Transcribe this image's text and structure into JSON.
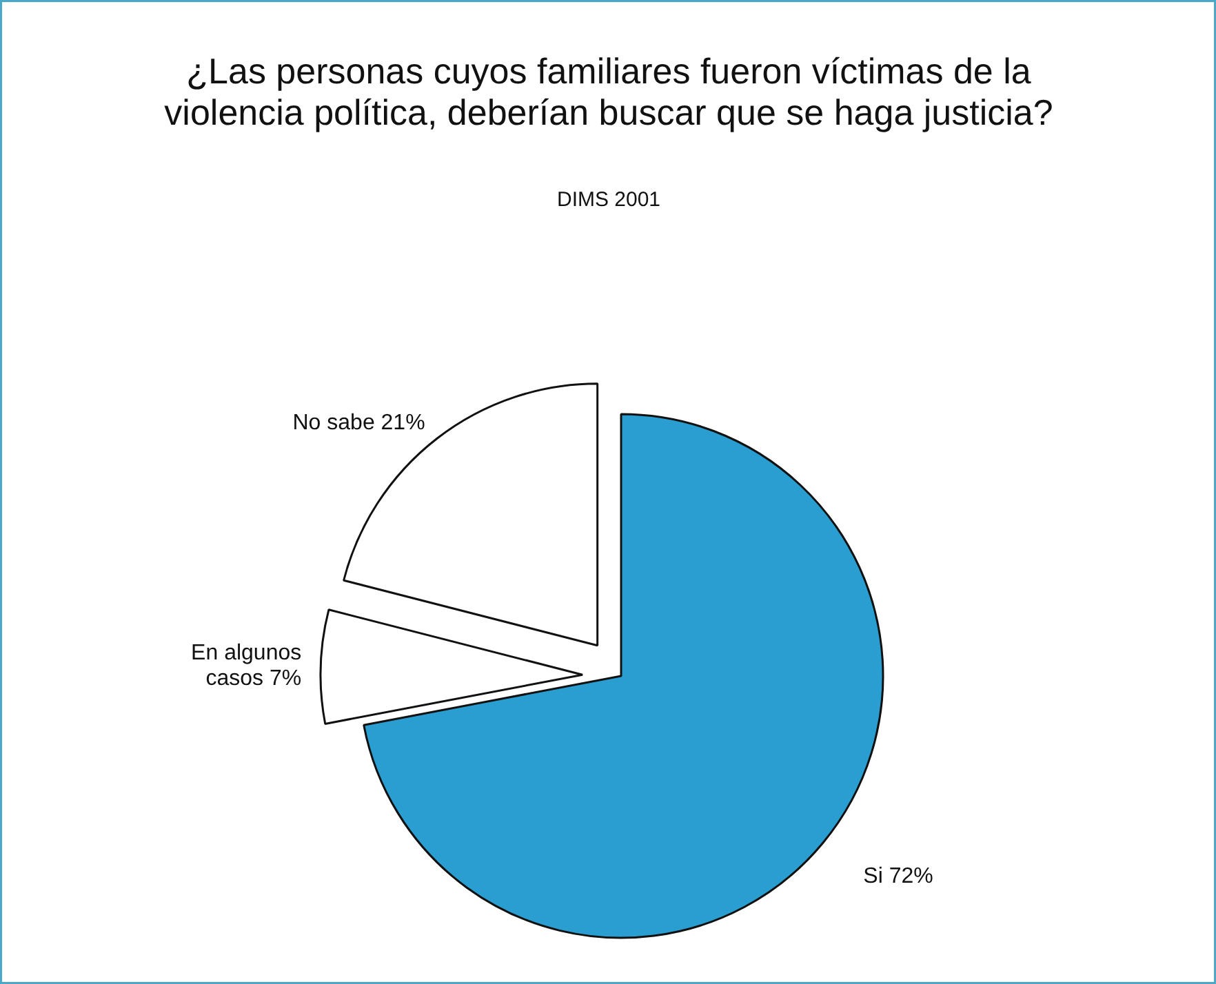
{
  "chart_data": {
    "type": "pie",
    "title": "¿Las personas cuyos familiares fueron víctimas de la violencia política, deberían buscar que se haga justicia?",
    "subtitle": "DIMS 2001",
    "categories": [
      "Si",
      "En algunos casos",
      "No sabe"
    ],
    "values": [
      72,
      7,
      21
    ],
    "value_labels": [
      "72%",
      "7%",
      "21%"
    ],
    "colors": [
      "#2a9ed0",
      "#ffffff",
      "#ffffff"
    ]
  }
}
